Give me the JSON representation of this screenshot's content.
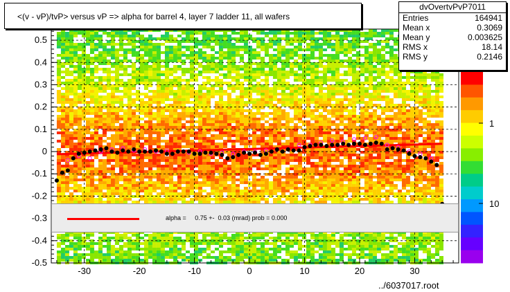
{
  "title": "<(v - vP)/tvP> versus  vP => alpha for barrel 4, layer 7 ladder 11, all wafers",
  "stats": {
    "name": "dvOvertvPvP7011",
    "rows": [
      {
        "label": "Entries",
        "value": "164941"
      },
      {
        "label": "Mean x",
        "value": "0.3069"
      },
      {
        "label": "Mean y",
        "value": "0.003625"
      },
      {
        "label": "RMS x",
        "value": "18.14"
      },
      {
        "label": "RMS y",
        "value": "0.2146"
      }
    ]
  },
  "legend": {
    "text": "alpha =     0.75 +-  0.03 (mrad) prob = 0.000",
    "line_color": "#ff0000"
  },
  "footer": "../6037017.root",
  "chart_data": {
    "type": "heatmap",
    "xlim": [
      -36,
      38
    ],
    "ylim": [
      -0.5,
      0.55
    ],
    "x_ticks": [
      "-30",
      "-20",
      "-10",
      "0",
      "10",
      "20",
      "30"
    ],
    "y_ticks": [
      "-0.5",
      "-0.4",
      "-0.3",
      "-0.2",
      "-0.1",
      "0",
      "0.1",
      "0.2",
      "0.3",
      "0.4",
      "0.5"
    ],
    "colorbar_ticks": [
      "1",
      "10"
    ],
    "grid": true,
    "fit_line": {
      "x": [
        -35,
        35
      ],
      "y": [
        -0.012,
        0.035
      ],
      "color": "#ff0000"
    },
    "profile_points": {
      "color": "#000000",
      "x": [
        -35,
        -34,
        -33,
        -32,
        -31,
        -30,
        -29,
        -28,
        -27,
        -26,
        -25,
        -24,
        -23,
        -22,
        -21,
        -20,
        -19,
        -18,
        -17,
        -16,
        -15,
        -14,
        -13,
        -12,
        -11,
        -10,
        -9,
        -8,
        -7,
        -6,
        -5,
        -4,
        -3,
        -2,
        -1,
        0,
        1,
        2,
        3,
        4,
        5,
        6,
        7,
        8,
        9,
        10,
        11,
        12,
        13,
        14,
        15,
        16,
        17,
        18,
        19,
        20,
        21,
        22,
        23,
        24,
        25,
        26,
        27,
        28,
        29,
        30,
        31,
        32,
        33,
        34,
        35
      ],
      "y": [
        -0.13,
        -0.095,
        -0.085,
        -0.03,
        -0.01,
        -0.005,
        0.0,
        0.005,
        0.01,
        0.015,
        0.0,
        -0.005,
        0.005,
        0.0,
        0.01,
        0.0,
        0.0,
        0.0,
        0.005,
        0.0,
        -0.01,
        -0.01,
        0.0,
        0.0,
        0.0,
        -0.01,
        -0.01,
        -0.005,
        -0.005,
        -0.01,
        -0.015,
        -0.03,
        -0.025,
        -0.015,
        -0.005,
        -0.01,
        -0.005,
        -0.015,
        -0.01,
        0.0,
        0.01,
        0.0,
        0.01,
        0.005,
        0.005,
        0.02,
        0.025,
        0.03,
        0.03,
        0.025,
        0.03,
        0.03,
        0.035,
        0.03,
        0.035,
        0.035,
        0.03,
        0.035,
        0.04,
        0.035,
        0.01,
        0.015,
        0.01,
        0.005,
        -0.01,
        -0.02,
        -0.025,
        -0.03,
        -0.045,
        -0.06,
        -0.235
      ]
    },
    "mean_points": {
      "color": "#ff00ff",
      "x": [
        -33,
        -31,
        -29,
        -27,
        -25,
        -23,
        -21,
        -19,
        -17,
        -15,
        -13,
        -11,
        -9,
        -7,
        -5,
        -3,
        -1,
        1,
        3,
        5,
        7,
        9,
        11,
        13,
        15,
        17,
        19,
        21,
        23,
        25,
        27,
        29,
        31,
        33
      ],
      "y": [
        -0.04,
        -0.02,
        -0.03,
        0.0,
        0.01,
        0.015,
        0.005,
        0.01,
        0.0,
        0.005,
        0.0,
        -0.005,
        0.0,
        -0.01,
        -0.005,
        -0.01,
        0.0,
        0.0,
        0.005,
        0.01,
        0.01,
        0.03,
        0.03,
        0.04,
        0.05,
        0.045,
        0.055,
        0.06,
        0.065,
        0.03,
        0.02,
        0.0,
        -0.01,
        -0.03
      ]
    }
  }
}
